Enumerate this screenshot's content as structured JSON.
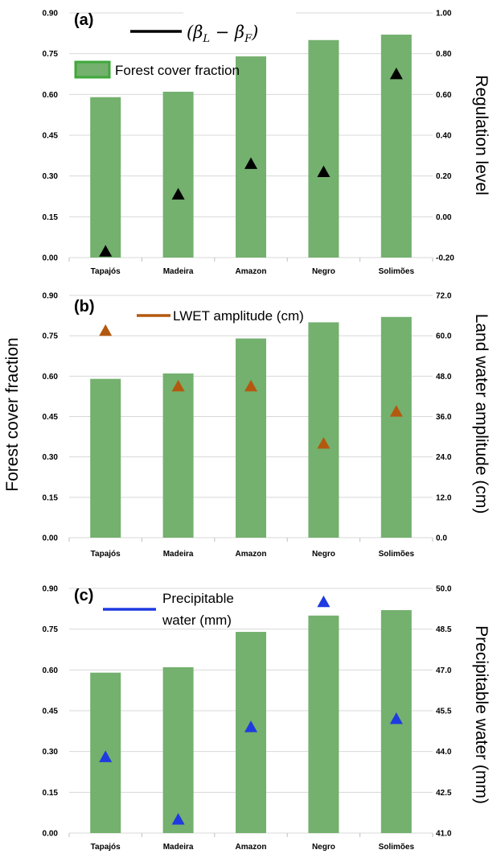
{
  "colors": {
    "bar": "#74b06e",
    "bar_legend_edge": "#3ea83a",
    "reg_marker": "#000000",
    "lwet_marker": "#b3590f",
    "pw_marker": "#1f3ae0",
    "grid": "#d8d8d8"
  },
  "y_left_title": "Forest cover fraction",
  "chart_data": [
    {
      "type": "bar",
      "panel_label": "(a)",
      "categories": [
        "Tapajós",
        "Madeira",
        "Amazon",
        "Negro",
        "Solimões"
      ],
      "series": [
        {
          "name": "Forest cover fraction",
          "axis": "left",
          "values": [
            0.59,
            0.61,
            0.74,
            0.8,
            0.82
          ]
        },
        {
          "name": "(βL − βF)",
          "axis": "right",
          "marker": "triangle",
          "values": [
            -0.17,
            0.11,
            0.26,
            0.22,
            0.7
          ]
        }
      ],
      "y_left": {
        "ticks": [
          "0.00",
          "0.15",
          "0.30",
          "0.45",
          "0.60",
          "0.75",
          "0.90"
        ],
        "min": 0,
        "max": 0.9
      },
      "y_right": {
        "title": "Regulation level",
        "ticks": [
          "-0.20",
          "0.00",
          "0.20",
          "0.40",
          "0.60",
          "0.80",
          "1.00"
        ],
        "min": -0.2,
        "max": 1.0
      },
      "legend": {
        "marker_label": "(β",
        "marker_sub1": "L",
        "marker_mid": " − β",
        "marker_sub2": "F",
        "marker_close": ")",
        "bar_label": "Forest cover fraction"
      }
    },
    {
      "type": "bar",
      "panel_label": "(b)",
      "categories": [
        "Tapajós",
        "Madeira",
        "Amazon",
        "Negro",
        "Solimões"
      ],
      "series": [
        {
          "name": "Forest cover fraction",
          "axis": "left",
          "values": [
            0.59,
            0.61,
            0.74,
            0.8,
            0.82
          ]
        },
        {
          "name": "LWET amplitude (cm)",
          "axis": "right",
          "marker": "triangle",
          "values": [
            61.5,
            45.0,
            45.0,
            28.0,
            37.5
          ]
        }
      ],
      "y_left": {
        "ticks": [
          "0.00",
          "0.15",
          "0.30",
          "0.45",
          "0.60",
          "0.75",
          "0.90"
        ],
        "min": 0,
        "max": 0.9
      },
      "y_right": {
        "title": "Land water amplitude (cm)",
        "ticks": [
          "0.0",
          "12.0",
          "24.0",
          "36.0",
          "48.0",
          "60.0",
          "72.0"
        ],
        "min": 0,
        "max": 72
      },
      "legend": {
        "marker_label": "LWET amplitude (cm)"
      }
    },
    {
      "type": "bar",
      "panel_label": "(c)",
      "categories": [
        "Tapajós",
        "Madeira",
        "Amazon",
        "Negro",
        "Solimões"
      ],
      "series": [
        {
          "name": "Forest cover fraction",
          "axis": "left",
          "values": [
            0.59,
            0.61,
            0.74,
            0.8,
            0.82
          ]
        },
        {
          "name": "Precipitable water (mm)",
          "axis": "right",
          "marker": "triangle",
          "values": [
            43.8,
            41.5,
            44.9,
            49.5,
            45.2
          ]
        }
      ],
      "y_left": {
        "ticks": [
          "0.00",
          "0.15",
          "0.30",
          "0.45",
          "0.60",
          "0.75",
          "0.90"
        ],
        "min": 0,
        "max": 0.9
      },
      "y_right": {
        "title": "Precipitable water (mm)",
        "ticks": [
          "41.0",
          "42.5",
          "44.0",
          "45.5",
          "47.0",
          "48.5",
          "50.0"
        ],
        "min": 41.0,
        "max": 50.0
      },
      "legend": {
        "marker_label_line1": "Precipitable",
        "marker_label_line2": "water (mm)"
      }
    }
  ]
}
